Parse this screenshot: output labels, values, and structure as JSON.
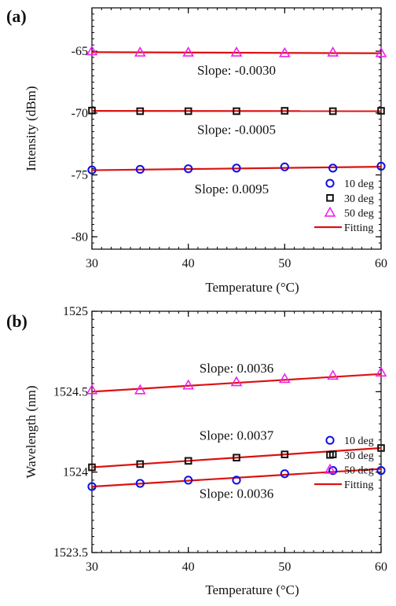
{
  "chart_data": [
    {
      "type": "scatter",
      "panel_label": "(a)",
      "title": "",
      "xlabel": "Temperature (°C)",
      "ylabel": "Intensity (dBm)",
      "xlim": [
        30,
        60
      ],
      "ylim": [
        -81,
        -61.5
      ],
      "x_ticks": [
        30,
        40,
        50,
        60
      ],
      "x_tick_labels": [
        "30",
        "40",
        "50",
        "60"
      ],
      "y_ticks": [
        -65,
        -70,
        -75,
        -80
      ],
      "y_tick_labels": [
        "-65",
        "-70",
        "-75",
        "-80"
      ],
      "grid": false,
      "legend_position": "bottom-right",
      "x": [
        30,
        35,
        40,
        45,
        50,
        55,
        60
      ],
      "series": [
        {
          "name": "10 deg",
          "marker": "circle",
          "color": "#1010e0",
          "values": [
            -74.6,
            -74.55,
            -74.5,
            -74.45,
            -74.35,
            -74.45,
            -74.3
          ]
        },
        {
          "name": "30 deg",
          "marker": "square",
          "color": "#111111",
          "values": [
            -69.8,
            -69.85,
            -69.85,
            -69.85,
            -69.82,
            -69.85,
            -69.82
          ]
        },
        {
          "name": "50 deg",
          "marker": "triangle",
          "color": "#ee22ee",
          "values": [
            -65.0,
            -65.1,
            -65.1,
            -65.1,
            -65.15,
            -65.1,
            -65.15
          ]
        }
      ],
      "fits": [
        {
          "label": "Slope: -0.0030",
          "x": [
            30,
            60
          ],
          "y": [
            -65.08,
            -65.17
          ],
          "label_pos": {
            "x": 45,
            "y": -66.9
          }
        },
        {
          "label": "Slope: -0.0005",
          "x": [
            30,
            60
          ],
          "y": [
            -69.83,
            -69.845
          ],
          "label_pos": {
            "x": 45,
            "y": -71.7
          }
        },
        {
          "label": "Slope: 0.0095",
          "x": [
            30,
            60
          ],
          "y": [
            -74.62,
            -74.34
          ],
          "label_pos": {
            "x": 44.5,
            "y": -76.5
          }
        }
      ],
      "fit_legend": "Fitting",
      "fit_color": "#dd1111"
    },
    {
      "type": "scatter",
      "panel_label": "(b)",
      "title": "",
      "xlabel": "Temperature (°C)",
      "ylabel": "Wavelength (nm)",
      "xlim": [
        30,
        60
      ],
      "ylim": [
        1523.5,
        1525
      ],
      "x_ticks": [
        30,
        40,
        50,
        60
      ],
      "x_tick_labels": [
        "30",
        "40",
        "50",
        "60"
      ],
      "y_ticks": [
        1525,
        1524.5,
        1524,
        1523.5
      ],
      "y_tick_labels": [
        "1525",
        "1524.5",
        "1524",
        "1523.5"
      ],
      "grid": false,
      "legend_position": "bottom-right",
      "x": [
        30,
        35,
        40,
        45,
        50,
        55,
        60
      ],
      "series": [
        {
          "name": "10 deg",
          "marker": "circle",
          "color": "#1010e0",
          "values": [
            1523.91,
            1523.93,
            1523.95,
            1523.95,
            1523.99,
            1524.01,
            1524.01
          ]
        },
        {
          "name": "30 deg",
          "marker": "square",
          "color": "#111111",
          "values": [
            1524.03,
            1524.05,
            1524.07,
            1524.09,
            1524.11,
            1524.11,
            1524.15
          ]
        },
        {
          "name": "50 deg",
          "marker": "triangle",
          "color": "#ee22ee",
          "values": [
            1524.51,
            1524.51,
            1524.54,
            1524.56,
            1524.58,
            1524.6,
            1524.62
          ]
        }
      ],
      "fits": [
        {
          "label": "Slope: 0.0036",
          "x": [
            30,
            60
          ],
          "y": [
            1524.5,
            1524.61
          ],
          "label_pos": {
            "x": 45,
            "y": 1524.62
          }
        },
        {
          "label": "Slope: 0.0037",
          "x": [
            30,
            60
          ],
          "y": [
            1524.03,
            1524.15
          ],
          "label_pos": {
            "x": 45,
            "y": 1524.2
          }
        },
        {
          "label": "Slope: 0.0036",
          "x": [
            30,
            60
          ],
          "y": [
            1523.91,
            1524.02
          ],
          "label_pos": {
            "x": 45,
            "y": 1523.84
          }
        }
      ],
      "fit_legend": "Fitting",
      "fit_color": "#dd1111"
    }
  ]
}
